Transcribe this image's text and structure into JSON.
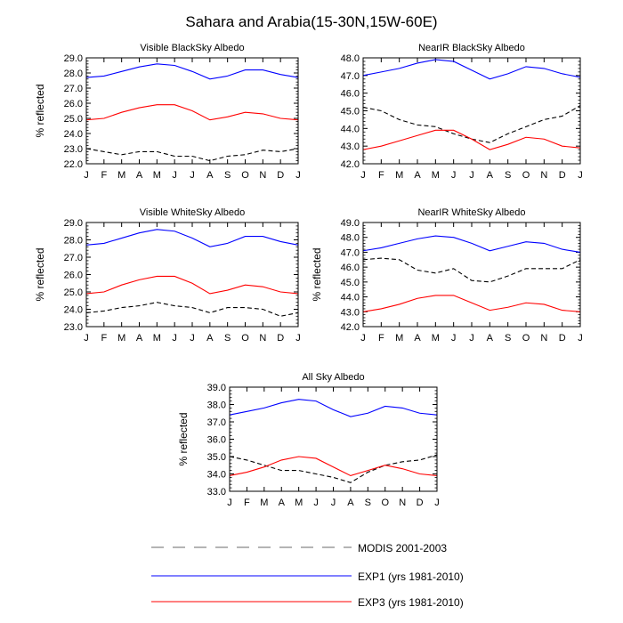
{
  "figure": {
    "title": "Sahara and Arabia(15-30N,15W-60E)"
  },
  "legend": {
    "entries": [
      {
        "label": "MODIS 2001-2003",
        "color": "#000000",
        "dash": "dashed"
      },
      {
        "label": "EXP1 (yrs 1981-2010)",
        "color": "#0000ff",
        "dash": "solid"
      },
      {
        "label": "EXP3 (yrs 1981-2010)",
        "color": "#ff0000",
        "dash": "solid"
      }
    ]
  },
  "chart_data": [
    {
      "type": "line",
      "title": "Visible BlackSky Albedo",
      "ylabel": "% reflected",
      "categories": [
        "J",
        "F",
        "M",
        "A",
        "M",
        "J",
        "J",
        "A",
        "S",
        "O",
        "N",
        "D",
        "J"
      ],
      "ylim": [
        22.0,
        29.0
      ],
      "yticks": [
        "22.0",
        "23.0",
        "24.0",
        "25.0",
        "26.0",
        "27.0",
        "28.0",
        "29.0"
      ],
      "series": [
        {
          "values": [
            23.0,
            22.8,
            22.6,
            22.8,
            22.8,
            22.5,
            22.5,
            22.2,
            22.5,
            22.6,
            22.9,
            22.8,
            23.0
          ],
          "color": "#000000",
          "dash": "dashed"
        },
        {
          "values": [
            27.7,
            27.8,
            28.1,
            28.4,
            28.6,
            28.5,
            28.1,
            27.6,
            27.8,
            28.2,
            28.2,
            27.9,
            27.7
          ],
          "color": "#0000ff",
          "dash": "solid"
        },
        {
          "values": [
            24.9,
            25.0,
            25.4,
            25.7,
            25.9,
            25.9,
            25.5,
            24.9,
            25.1,
            25.4,
            25.3,
            25.0,
            24.9
          ],
          "color": "#ff0000",
          "dash": "solid"
        }
      ]
    },
    {
      "type": "line",
      "title": "NearIR BlackSky Albedo",
      "ylabel": "",
      "categories": [
        "J",
        "F",
        "M",
        "A",
        "M",
        "J",
        "J",
        "A",
        "S",
        "O",
        "N",
        "D",
        "J"
      ],
      "ylim": [
        42.0,
        48.0
      ],
      "yticks": [
        "42.0",
        "43.0",
        "44.0",
        "45.0",
        "46.0",
        "47.0",
        "48.0"
      ],
      "series": [
        {
          "values": [
            45.2,
            45.0,
            44.5,
            44.2,
            44.1,
            43.7,
            43.4,
            43.2,
            43.7,
            44.1,
            44.5,
            44.7,
            45.3
          ],
          "color": "#000000",
          "dash": "dashed"
        },
        {
          "values": [
            47.0,
            47.2,
            47.4,
            47.7,
            47.9,
            47.8,
            47.3,
            46.8,
            47.1,
            47.5,
            47.4,
            47.1,
            46.9
          ],
          "color": "#0000ff",
          "dash": "solid"
        },
        {
          "values": [
            42.8,
            43.0,
            43.3,
            43.6,
            43.9,
            43.9,
            43.4,
            42.8,
            43.1,
            43.5,
            43.4,
            43.0,
            42.9
          ],
          "color": "#ff0000",
          "dash": "solid"
        }
      ]
    },
    {
      "type": "line",
      "title": "Visible WhiteSky Albedo",
      "ylabel": "% reflected",
      "categories": [
        "J",
        "F",
        "M",
        "A",
        "M",
        "J",
        "J",
        "A",
        "S",
        "O",
        "N",
        "D",
        "J"
      ],
      "ylim": [
        23.0,
        29.0
      ],
      "yticks": [
        "23.0",
        "24.0",
        "25.0",
        "26.0",
        "27.0",
        "28.0",
        "29.0"
      ],
      "series": [
        {
          "values": [
            23.8,
            23.9,
            24.1,
            24.2,
            24.4,
            24.2,
            24.1,
            23.8,
            24.1,
            24.1,
            24.0,
            23.6,
            23.8
          ],
          "color": "#000000",
          "dash": "dashed"
        },
        {
          "values": [
            27.7,
            27.8,
            28.1,
            28.4,
            28.6,
            28.5,
            28.1,
            27.6,
            27.8,
            28.2,
            28.2,
            27.9,
            27.7
          ],
          "color": "#0000ff",
          "dash": "solid"
        },
        {
          "values": [
            24.9,
            25.0,
            25.4,
            25.7,
            25.9,
            25.9,
            25.5,
            24.9,
            25.1,
            25.4,
            25.3,
            25.0,
            24.9
          ],
          "color": "#ff0000",
          "dash": "solid"
        }
      ]
    },
    {
      "type": "line",
      "title": "NearIR WhiteSky Albedo",
      "ylabel": "% reflected",
      "categories": [
        "J",
        "F",
        "M",
        "A",
        "M",
        "J",
        "J",
        "A",
        "S",
        "O",
        "N",
        "D",
        "J"
      ],
      "ylim": [
        42.0,
        49.0
      ],
      "yticks": [
        "42.0",
        "43.0",
        "44.0",
        "45.0",
        "46.0",
        "47.0",
        "48.0",
        "49.0"
      ],
      "series": [
        {
          "values": [
            46.5,
            46.6,
            46.5,
            45.8,
            45.6,
            45.9,
            45.1,
            45.0,
            45.4,
            45.9,
            45.9,
            45.9,
            46.5
          ],
          "color": "#000000",
          "dash": "dashed"
        },
        {
          "values": [
            47.1,
            47.3,
            47.6,
            47.9,
            48.1,
            48.0,
            47.6,
            47.1,
            47.4,
            47.7,
            47.6,
            47.2,
            47.0
          ],
          "color": "#0000ff",
          "dash": "solid"
        },
        {
          "values": [
            43.0,
            43.2,
            43.5,
            43.9,
            44.1,
            44.1,
            43.6,
            43.1,
            43.3,
            43.6,
            43.5,
            43.1,
            43.0
          ],
          "color": "#ff0000",
          "dash": "solid"
        }
      ]
    },
    {
      "type": "line",
      "title": "All Sky Albedo",
      "ylabel": "% reflected",
      "categories": [
        "J",
        "F",
        "M",
        "A",
        "M",
        "J",
        "J",
        "A",
        "S",
        "O",
        "N",
        "D",
        "J"
      ],
      "ylim": [
        33.0,
        39.0
      ],
      "yticks": [
        "33.0",
        "34.0",
        "35.0",
        "36.0",
        "37.0",
        "38.0",
        "39.0"
      ],
      "series": [
        {
          "values": [
            35.0,
            34.8,
            34.5,
            34.2,
            34.2,
            34.0,
            33.8,
            33.5,
            34.1,
            34.5,
            34.7,
            34.8,
            35.1
          ],
          "color": "#000000",
          "dash": "dashed"
        },
        {
          "values": [
            37.4,
            37.6,
            37.8,
            38.1,
            38.3,
            38.2,
            37.7,
            37.3,
            37.5,
            37.9,
            37.8,
            37.5,
            37.4
          ],
          "color": "#0000ff",
          "dash": "solid"
        },
        {
          "values": [
            33.9,
            34.1,
            34.4,
            34.8,
            35.0,
            34.9,
            34.4,
            33.9,
            34.2,
            34.5,
            34.3,
            34.0,
            33.9
          ],
          "color": "#ff0000",
          "dash": "solid"
        }
      ]
    }
  ]
}
